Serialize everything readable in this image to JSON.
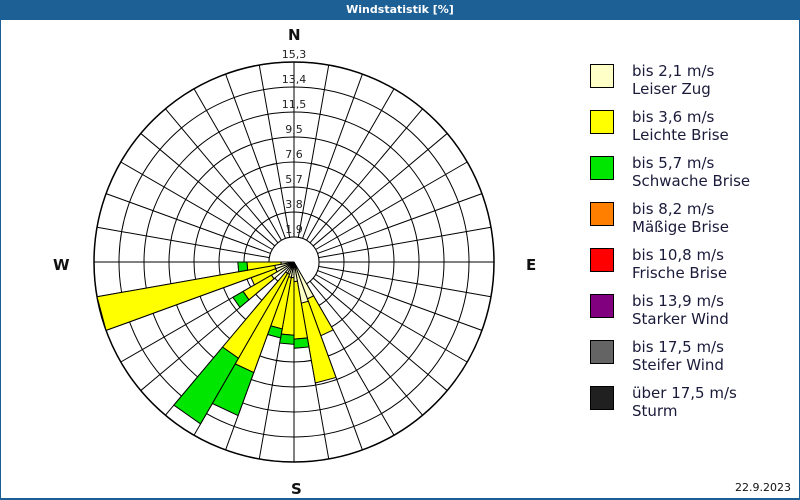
{
  "header": {
    "title": "Windstatistik [%]"
  },
  "footer": {
    "date": "22.9.2023"
  },
  "compass": {
    "n": "N",
    "e": "E",
    "s": "S",
    "w": "W"
  },
  "legend": [
    {
      "range": "bis 2,1 m/s",
      "name": "Leiser Zug",
      "color": "#ffffc8"
    },
    {
      "range": "bis 3,6 m/s",
      "name": "Leichte Brise",
      "color": "#ffff00"
    },
    {
      "range": "bis 5,7 m/s",
      "name": "Schwache Brise",
      "color": "#00e600"
    },
    {
      "range": "bis 8,2 m/s",
      "name": "Mäßige Brise",
      "color": "#ff8000"
    },
    {
      "range": "bis 10,8 m/s",
      "name": "Frische Brise",
      "color": "#ff0000"
    },
    {
      "range": "bis 13,9 m/s",
      "name": "Starker Wind",
      "color": "#800080"
    },
    {
      "range": "bis 17,5 m/s",
      "name": "Steifer Wind",
      "color": "#646464"
    },
    {
      "range": "über 17,5 m/s",
      "name": "Sturm",
      "color": "#202020"
    }
  ],
  "chart_data": {
    "type": "polar-bar",
    "title": "Windstatistik [%]",
    "radial_ticks": [
      "1,9",
      "3,8",
      "5,7",
      "7,6",
      "9,5",
      "11,5",
      "13,4",
      "15,3"
    ],
    "radial_max": 15.3,
    "sector_width_deg": 10,
    "directions_deg": [
      155,
      165,
      175,
      185,
      195,
      205,
      215,
      235,
      245,
      255,
      265
    ],
    "series": [
      {
        "name": "bis 2,1 m/s",
        "values": [
          3.0,
          3.2,
          1.5,
          1.2,
          1.2,
          1.0,
          1.0,
          2.0,
          1.5,
          1.5,
          1.0
        ]
      },
      {
        "name": "bis 3,6 m/s",
        "values": [
          3.0,
          6.2,
          4.4,
          4.4,
          4.0,
          8.0,
          7.5,
          2.5,
          2.0,
          13.8,
          2.6
        ]
      },
      {
        "name": "bis 5,7 m/s",
        "values": [
          0,
          0,
          0.7,
          0.7,
          0.7,
          3.5,
          5.8,
          0.9,
          0,
          0,
          0.7
        ]
      }
    ],
    "legend_position": "right",
    "grid": true
  }
}
